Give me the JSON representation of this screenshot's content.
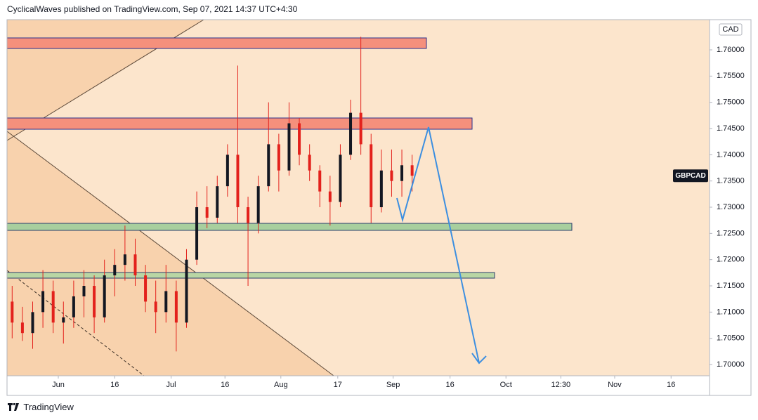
{
  "header": "CyclicalWaves published on TradingView.com, Sep 07, 2021 14:37 UTC+4:30",
  "footer": "TradingView",
  "chart_data": {
    "type": "candlestick",
    "symbol": "GBPCAD",
    "currency": "CAD",
    "x": [
      -9,
      -7,
      -5,
      -3,
      -1,
      1,
      3,
      5,
      7,
      9,
      11,
      13,
      15,
      17,
      19,
      21,
      23,
      25,
      27,
      29,
      31,
      33,
      35,
      37,
      39,
      41,
      43,
      45,
      47,
      49,
      51,
      53,
      55,
      57,
      59,
      61,
      63,
      65,
      67,
      69
    ],
    "open": [
      1.712,
      1.708,
      1.706,
      1.71,
      1.714,
      1.708,
      1.709,
      1.713,
      1.715,
      1.709,
      1.717,
      1.719,
      1.721,
      1.717,
      1.712,
      1.71,
      1.714,
      1.708,
      1.72,
      1.73,
      1.728,
      1.734,
      1.74,
      1.73,
      1.727,
      1.734,
      1.742,
      1.737,
      1.746,
      1.74,
      1.737,
      1.733,
      1.731,
      1.74,
      1.748,
      1.742,
      1.73,
      1.737,
      1.735,
      1.738
    ],
    "high": [
      1.715,
      1.711,
      1.712,
      1.718,
      1.716,
      1.712,
      1.716,
      1.718,
      1.717,
      1.72,
      1.722,
      1.7265,
      1.724,
      1.719,
      1.716,
      1.719,
      1.716,
      1.722,
      1.733,
      1.734,
      1.736,
      1.742,
      1.757,
      1.732,
      1.736,
      1.75,
      1.744,
      1.75,
      1.747,
      1.742,
      1.738,
      1.736,
      1.742,
      1.7505,
      1.7625,
      1.744,
      1.741,
      1.741,
      1.741,
      1.74
    ],
    "low": [
      1.705,
      1.7045,
      1.703,
      1.707,
      1.706,
      1.704,
      1.707,
      1.709,
      1.706,
      1.708,
      1.713,
      1.716,
      1.715,
      1.71,
      1.706,
      1.708,
      1.7025,
      1.707,
      1.719,
      1.726,
      1.727,
      1.732,
      1.727,
      1.715,
      1.725,
      1.733,
      1.733,
      1.736,
      1.738,
      1.735,
      1.73,
      1.7265,
      1.73,
      1.739,
      1.74,
      1.727,
      1.729,
      1.732,
      1.732,
      1.733
    ],
    "close": [
      1.708,
      1.706,
      1.71,
      1.714,
      1.708,
      1.709,
      1.713,
      1.715,
      1.709,
      1.717,
      1.719,
      1.721,
      1.717,
      1.712,
      1.71,
      1.714,
      1.708,
      1.72,
      1.73,
      1.728,
      1.734,
      1.74,
      1.73,
      1.727,
      1.734,
      1.742,
      1.737,
      1.746,
      1.74,
      1.737,
      1.733,
      1.731,
      1.74,
      1.748,
      1.742,
      1.73,
      1.737,
      1.735,
      1.738,
      1.736
    ],
    "up_color": "#131722",
    "down_color": "#e3211c",
    "xlim": [
      -10,
      127
    ],
    "xticks": [
      {
        "value": 0,
        "label": "Jun"
      },
      {
        "value": 11,
        "label": "16"
      },
      {
        "value": 22,
        "label": "Jul"
      },
      {
        "value": 32.5,
        "label": "16"
      },
      {
        "value": 43.4,
        "label": "Aug"
      },
      {
        "value": 54.5,
        "label": "17"
      },
      {
        "value": 65.3,
        "label": "Sep"
      },
      {
        "value": 76.4,
        "label": "16"
      },
      {
        "value": 87.3,
        "label": "Oct"
      },
      {
        "value": 98,
        "label": "12:30"
      },
      {
        "value": 108.5,
        "label": "Nov"
      },
      {
        "value": 119.5,
        "label": "16"
      }
    ],
    "ylim": [
      1.69786,
      1.76576
    ],
    "yticks": [
      {
        "value": 1.7,
        "label": "1.70000"
      },
      {
        "value": 1.705,
        "label": "1.70500"
      },
      {
        "value": 1.71,
        "label": "1.71000"
      },
      {
        "value": 1.715,
        "label": "1.71500"
      },
      {
        "value": 1.72,
        "label": "1.72000"
      },
      {
        "value": 1.725,
        "label": "1.72500"
      },
      {
        "value": 1.73,
        "label": "1.73000"
      },
      {
        "value": 1.735,
        "label": "1.73500"
      },
      {
        "value": 1.74,
        "label": "1.74000"
      },
      {
        "value": 1.745,
        "label": "1.74500"
      },
      {
        "value": 1.75,
        "label": "1.75000"
      },
      {
        "value": 1.755,
        "label": "1.75500"
      },
      {
        "value": 1.76,
        "label": "1.76000"
      }
    ]
  }
}
